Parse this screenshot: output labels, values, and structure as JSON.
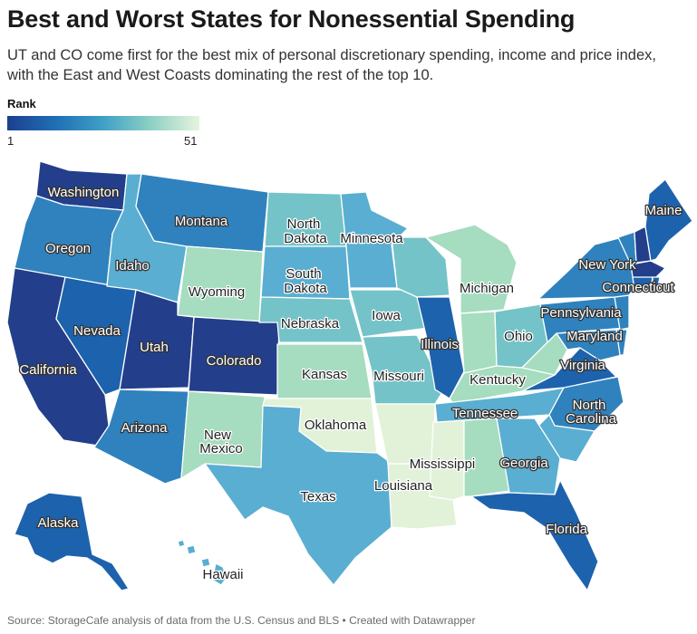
{
  "title": "Best and Worst States for Nonessential Spending",
  "subtitle": "UT and CO come first for the best mix of personal discretionary spending, income and price index, with the East and West Coasts dominating the rest of the top 10.",
  "legend": {
    "title": "Rank",
    "min": "1",
    "max": "51"
  },
  "source": "Source: StorageCafe analysis of data from the U.S. Census and BLS • Created with Datawrapper",
  "colors": {
    "tier1": "#233f8b",
    "tier2": "#1d62ad",
    "tier3": "#2f82bd",
    "tier4": "#5aaed1",
    "tier5": "#74c3c8",
    "tier6": "#a6dcbf",
    "tier7": "#e2f2d9"
  },
  "states": {
    "washington": "Washington",
    "oregon": "Oregon",
    "california": "California",
    "nevada": "Nevada",
    "idaho": "Idaho",
    "montana": "Montana",
    "wyoming": "Wyoming",
    "utah": "Utah",
    "colorado": "Colorado",
    "arizona": "Arizona",
    "new_mexico_1": "New",
    "new_mexico_2": "Mexico",
    "north_dakota_1": "North",
    "north_dakota_2": "Dakota",
    "south_dakota_1": "South",
    "south_dakota_2": "Dakota",
    "nebraska": "Nebraska",
    "kansas": "Kansas",
    "oklahoma": "Oklahoma",
    "texas": "Texas",
    "minnesota": "Minnesota",
    "iowa": "Iowa",
    "missouri": "Missouri",
    "louisiana": "Louisiana",
    "mississippi": "Mississippi",
    "illinois": "Illinois",
    "michigan": "Michigan",
    "ohio": "Ohio",
    "kentucky": "Kentucky",
    "tennessee": "Tennessee",
    "georgia": "Georgia",
    "florida": "Florida",
    "north_carolina_1": "North",
    "north_carolina_2": "Carolina",
    "virginia": "Virginia",
    "maryland": "Maryland",
    "pennsylvania": "Pennsylvania",
    "new_york": "New York",
    "connecticut": "Connecticut",
    "maine": "Maine",
    "alaska": "Alaska",
    "hawaii": "Hawaii"
  }
}
